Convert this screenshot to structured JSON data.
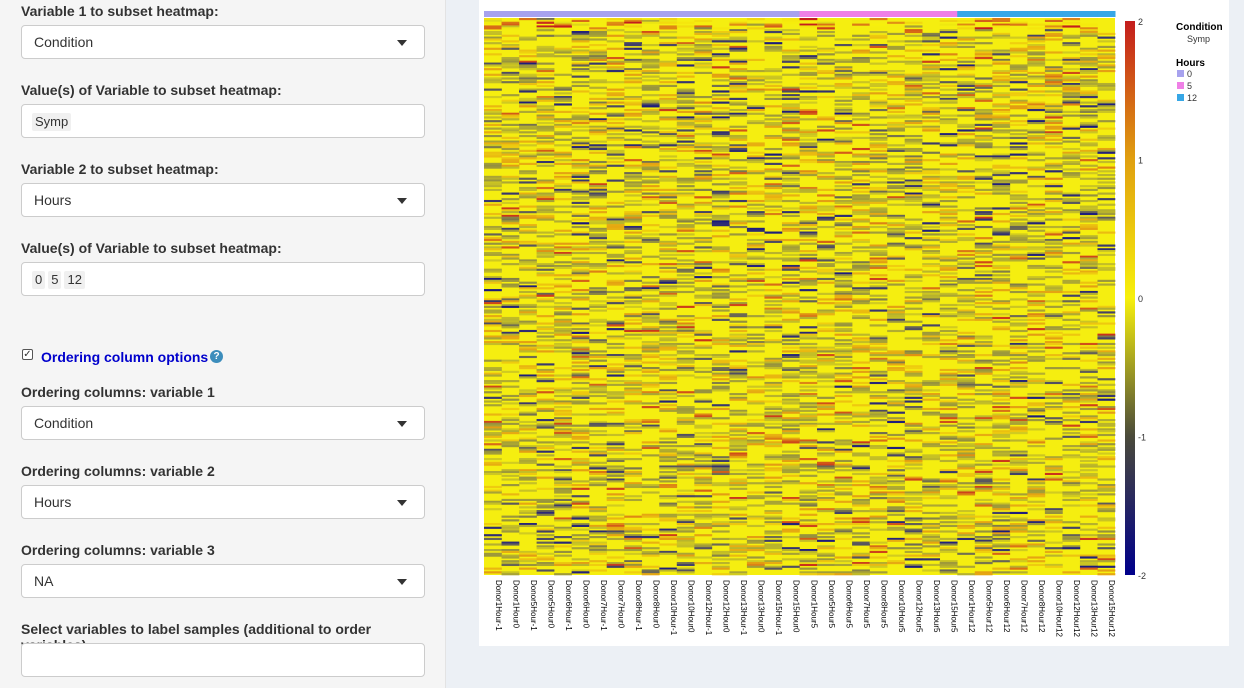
{
  "sidebar": {
    "var1_label": "Variable 1 to subset heatmap:",
    "var1_value": "Condition",
    "values1_label": "Value(s) of Variable to subset heatmap:",
    "values1": [
      "Symp"
    ],
    "var2_label": "Variable 2 to subset heatmap:",
    "var2_value": "Hours",
    "values2_label": "Value(s) of Variable to subset heatmap:",
    "values2": [
      "0",
      "5",
      "12"
    ],
    "ordering_checkbox_label": "Ordering column options",
    "ordering_checked": true,
    "help_icon": "question-circle-icon",
    "order1_label": "Ordering columns: variable 1",
    "order1_value": "Condition",
    "order2_label": "Ordering columns: variable 2",
    "order2_value": "Hours",
    "order3_label": "Ordering columns: variable 3",
    "order3_value": "NA",
    "label_vars_label": "Select variables to label samples (additional to order variables):",
    "label_vars_value": ""
  },
  "chart_data": {
    "type": "heatmap",
    "title": "",
    "columns": [
      "Donor1Hour-1",
      "Donor1Hour0",
      "Donor5Hour-1",
      "Donor5Hour0",
      "Donor6Hour-1",
      "Donor6Hour0",
      "Donor7Hour-1",
      "Donor7Hour0",
      "Donor8Hour-1",
      "Donor8Hour0",
      "Donor10Hour-1",
      "Donor10Hour0",
      "Donor12Hour-1",
      "Donor12Hour0",
      "Donor13Hour-1",
      "Donor13Hour0",
      "Donor15Hour-1",
      "Donor15Hour0",
      "Donor1Hour5",
      "Donor5Hour5",
      "Donor6Hour5",
      "Donor7Hour5",
      "Donor8Hour5",
      "Donor10Hour5",
      "Donor12Hour5",
      "Donor13Hour5",
      "Donor15Hour5",
      "Donor1Hour12",
      "Donor5Hour12",
      "Donor6Hour12",
      "Donor7Hour12",
      "Donor8Hour12",
      "Donor10Hour12",
      "Donor12Hour12",
      "Donor13Hour12",
      "Donor15Hour12"
    ],
    "column_hours": [
      0,
      0,
      0,
      0,
      0,
      0,
      0,
      0,
      0,
      0,
      0,
      0,
      0,
      0,
      0,
      0,
      0,
      0,
      5,
      5,
      5,
      5,
      5,
      5,
      5,
      5,
      5,
      12,
      12,
      12,
      12,
      12,
      12,
      12,
      12,
      12
    ],
    "colorbar": {
      "min": -2,
      "max": 2,
      "ticks": [
        "2",
        "1",
        "0",
        "-1",
        "-2"
      ]
    },
    "colorscale": [
      "#00008b",
      "#f7f00c",
      "#c41d1d"
    ],
    "legend": {
      "condition_title": "Condition",
      "condition_values": [
        "Symp"
      ],
      "hours_title": "Hours",
      "hours_values": [
        "0",
        "5",
        "12"
      ],
      "hours_colors": [
        "#a7a2ee",
        "#ef80e6",
        "#37a7e6"
      ],
      "placement": "right"
    },
    "row_count": 300,
    "cell_values": "dense matrix of z-scores mostly near 0, sparse excursions between -2 and 2"
  }
}
